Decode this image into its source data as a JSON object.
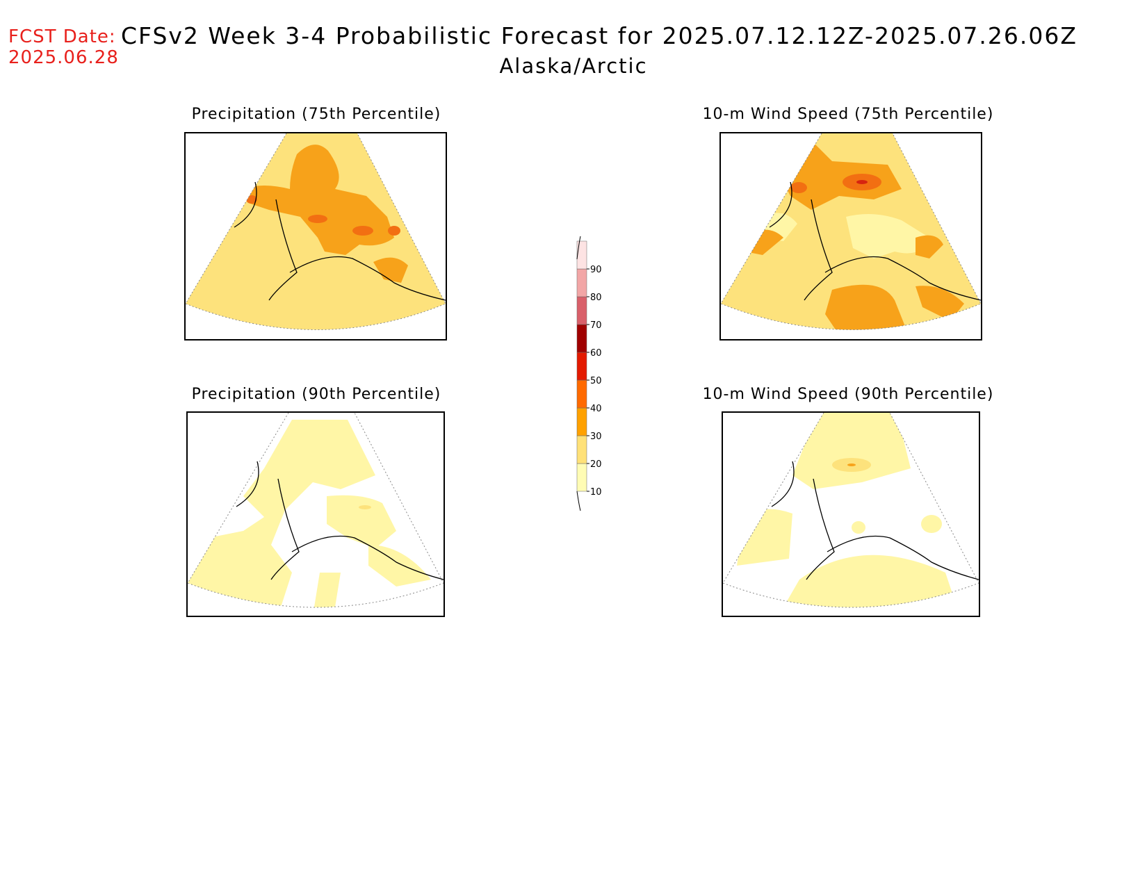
{
  "header": {
    "fcst_date_label": "FCST Date:",
    "fcst_date_value": "2025.06.28",
    "title": "CFSv2 Week 3-4 Probabilistic Forecast for 2025.07.12.12Z-2025.07.26.06Z",
    "region": "Alaska/Arctic"
  },
  "panels": [
    {
      "id": "precip75",
      "title": "Precipitation (75th Percentile)"
    },
    {
      "id": "wind75",
      "title": "10-m Wind Speed (75th Percentile)"
    },
    {
      "id": "precip90",
      "title": "Precipitation (90th Percentile)"
    },
    {
      "id": "wind90",
      "title": "10-m Wind Speed (90th Percentile)"
    }
  ],
  "colorbar": {
    "levels": [
      10,
      20,
      30,
      40,
      50,
      60,
      70,
      80,
      90
    ],
    "colors": [
      "#fffcb4",
      "#ffe178",
      "#ffa100",
      "#ff6a00",
      "#e31a00",
      "#a00000",
      "#d9606a",
      "#f2a6a6",
      "#fde3e3"
    ]
  },
  "colors": {
    "level10": "#fff6a6",
    "level20": "#fde27c",
    "level30": "#f7a21a",
    "level40": "#f26f12",
    "level50": "#d62410",
    "fcst_date": "#e8201c"
  }
}
